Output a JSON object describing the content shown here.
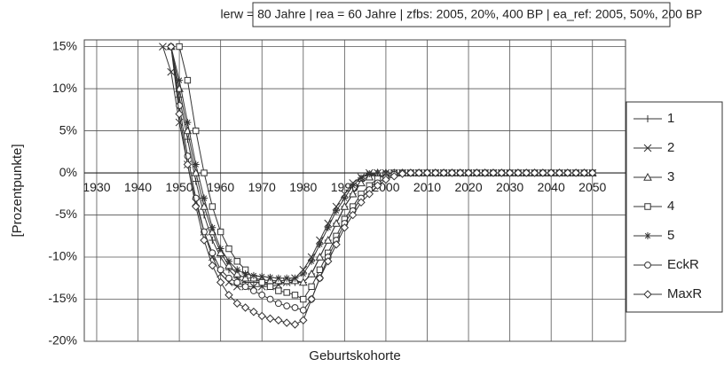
{
  "chart_data": {
    "type": "line",
    "title": "lerw = 80 Jahre | rea = 60 Jahre | zfbs: 2005, 20%, 400 BP | ea_ref: 2005, 50%, 200 BP",
    "x_label": "Geburtskohorte",
    "y_label": "[Prozentpunkte]",
    "xlim": [
      1927,
      2058
    ],
    "ylim": [
      -20,
      15.8
    ],
    "xticks": [
      1930,
      1940,
      1950,
      1960,
      1970,
      1980,
      1990,
      2000,
      2010,
      2020,
      2030,
      2040,
      2050
    ],
    "yticks": [
      {
        "value": -20,
        "label": "-20%"
      },
      {
        "value": -15,
        "label": "-15%"
      },
      {
        "value": -10,
        "label": "-10%"
      },
      {
        "value": -5,
        "label": "-5%"
      },
      {
        "value": 0,
        "label": "0%"
      },
      {
        "value": 5,
        "label": "5%"
      },
      {
        "value": 10,
        "label": "10%"
      },
      {
        "value": 15,
        "label": "15%"
      }
    ],
    "grid": true,
    "legend": "right",
    "x": [
      1946,
      1948,
      1950,
      1952,
      1954,
      1956,
      1958,
      1960,
      1962,
      1964,
      1966,
      1968,
      1970,
      1972,
      1974,
      1976,
      1978,
      1980,
      1982,
      1984,
      1986,
      1988,
      1990,
      1992,
      1994,
      1996,
      1998,
      2000,
      2002,
      2004,
      2006,
      2008,
      2010,
      2012,
      2014,
      2016,
      2018,
      2020,
      2022,
      2024,
      2026,
      2028,
      2030,
      2032,
      2034,
      2036,
      2038,
      2040,
      2042,
      2044,
      2046,
      2048,
      2050
    ],
    "series": [
      {
        "name": "1",
        "color": "#333333",
        "marker": "plus",
        "values": [
          null,
          15,
          9,
          4,
          -1,
          -5,
          -8,
          -10,
          -11.5,
          -12.5,
          -13,
          -13,
          -13,
          -13,
          -13,
          -13,
          -13,
          -13,
          -12,
          -10,
          -8,
          -6,
          -4,
          -2.5,
          -1,
          -0.3,
          0,
          0,
          0,
          0,
          0,
          0,
          0,
          0,
          0,
          0,
          0,
          0,
          0,
          0,
          0,
          0,
          0,
          0,
          0,
          0,
          0,
          0,
          0,
          0,
          0,
          0,
          0
        ]
      },
      {
        "name": "2",
        "color": "#333333",
        "marker": "x",
        "values": [
          15,
          12,
          6,
          1,
          -3.5,
          -7,
          -10,
          -12,
          -13,
          -13.5,
          -13.5,
          -13.5,
          -13.5,
          -13.5,
          -13.3,
          -13,
          -12.5,
          -11.5,
          -10,
          -8,
          -6,
          -4,
          -2.5,
          -1.2,
          -0.5,
          0,
          0,
          0,
          0,
          0,
          0,
          0,
          0,
          0,
          0,
          0,
          0,
          0,
          0,
          0,
          0,
          0,
          0,
          0,
          0,
          0,
          0,
          0,
          0,
          0,
          0,
          0,
          0
        ]
      },
      {
        "name": "3",
        "color": "#333333",
        "marker": "triangle",
        "values": [
          null,
          15,
          10,
          5,
          0,
          -4,
          -7,
          -9.5,
          -11,
          -12,
          -12.5,
          -12.5,
          -12.7,
          -12.8,
          -12.8,
          -12.8,
          -12.8,
          -13,
          -12,
          -10,
          -8,
          -6,
          -4,
          -2.5,
          -1.2,
          -0.5,
          0,
          0,
          0,
          0,
          0,
          0,
          0,
          0,
          0,
          0,
          0,
          0,
          0,
          0,
          0,
          0,
          0,
          0,
          0,
          0,
          0,
          0,
          0,
          0,
          0,
          0,
          0
        ]
      },
      {
        "name": "4",
        "color": "#333333",
        "marker": "square",
        "values": [
          null,
          null,
          15,
          11,
          5,
          0,
          -4,
          -7,
          -9,
          -10.5,
          -11.5,
          -12.5,
          -13,
          -13.5,
          -14,
          -14.2,
          -14.5,
          -15,
          -13.5,
          -11.5,
          -9.5,
          -7.5,
          -5.5,
          -4,
          -2.5,
          -1.5,
          -0.7,
          -0.2,
          0,
          0,
          0,
          0,
          0,
          0,
          0,
          0,
          0,
          0,
          0,
          0,
          0,
          0,
          0,
          0,
          0,
          0,
          0,
          0,
          0,
          0,
          0,
          0,
          0
        ]
      },
      {
        "name": "5",
        "color": "#333333",
        "marker": "star",
        "values": [
          null,
          15,
          11,
          6,
          1,
          -3,
          -6.5,
          -9,
          -10.5,
          -11.5,
          -12,
          -12.2,
          -12.3,
          -12.4,
          -12.5,
          -12.5,
          -12.5,
          -12,
          -10.5,
          -8.5,
          -6.5,
          -4.5,
          -3,
          -1.5,
          -0.6,
          -0.1,
          0,
          0,
          0,
          0,
          0,
          0,
          0,
          0,
          0,
          0,
          0,
          0,
          0,
          0,
          0,
          0,
          0,
          0,
          0,
          0,
          0,
          0,
          0,
          0,
          0,
          0,
          0
        ]
      },
      {
        "name": "EckR",
        "color": "#333333",
        "marker": "circle",
        "values": [
          null,
          15,
          8,
          2,
          -3,
          -7,
          -9.5,
          -11.5,
          -12.5,
          -13,
          -13.5,
          -14,
          -14.5,
          -15,
          -15.5,
          -15.8,
          -16,
          -16.3,
          -15,
          -12.5,
          -10,
          -8,
          -6,
          -4.5,
          -3,
          -2,
          -1.2,
          -0.6,
          -0.2,
          0,
          0,
          0,
          0,
          0,
          0,
          0,
          0,
          0,
          0,
          0,
          0,
          0,
          0,
          0,
          0,
          0,
          0,
          0,
          0,
          0,
          0,
          0,
          0
        ]
      },
      {
        "name": "MaxR",
        "color": "#333333",
        "marker": "diamond",
        "values": [
          null,
          15,
          7,
          1,
          -4,
          -8,
          -11,
          -13,
          -14.5,
          -15.5,
          -16,
          -16.5,
          -17,
          -17.3,
          -17.5,
          -17.8,
          -18,
          -17.5,
          -15,
          -12.5,
          -10.5,
          -8.5,
          -6.5,
          -5,
          -3.5,
          -2.5,
          -1.5,
          -0.8,
          -0.4,
          -0.1,
          0,
          0,
          0,
          0,
          0,
          0,
          0,
          0,
          0,
          0,
          0,
          0,
          0,
          0,
          0,
          0,
          0,
          0,
          0,
          0,
          0,
          0,
          0
        ]
      }
    ]
  }
}
